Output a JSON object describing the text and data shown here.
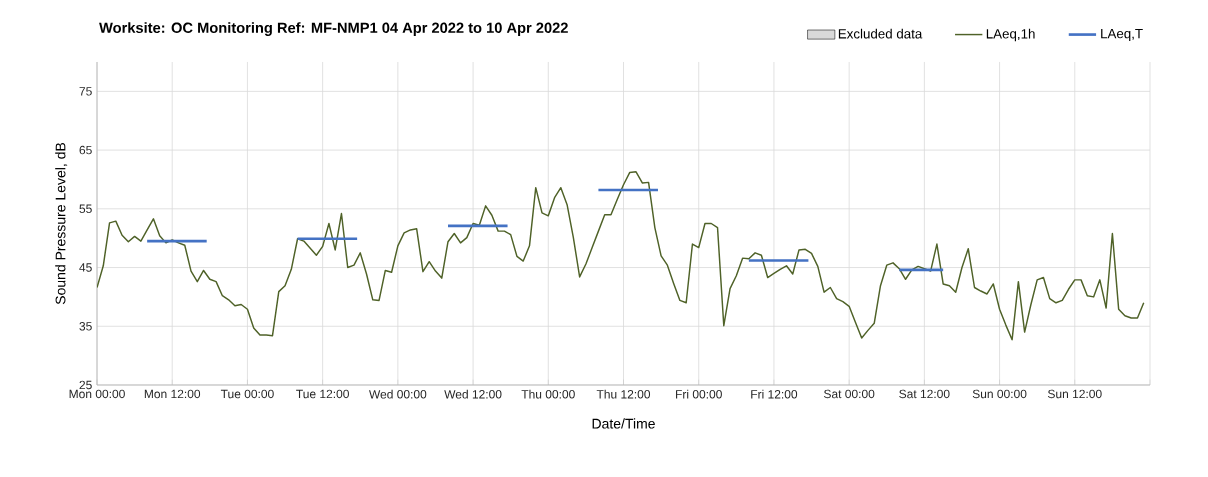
{
  "chart_data": {
    "type": "line",
    "title": "Worksite: OC    Monitoring Ref: MF-NMP1      04 Apr 2022 to 10 Apr 2022",
    "xlabel": "Date/Time",
    "ylabel": "Sound Pressure Level, dB",
    "xlim": [
      "2022-04-04T00:00",
      "2022-04-11T00:00"
    ],
    "ylim": [
      25,
      80
    ],
    "xticks": [
      {
        "value": "2022-04-04T00:00",
        "label": "Mon 00:00"
      },
      {
        "value": "2022-04-04T12:00",
        "label": "Mon 12:00"
      },
      {
        "value": "2022-04-05T00:00",
        "label": "Tue 00:00"
      },
      {
        "value": "2022-04-05T12:00",
        "label": "Tue 12:00"
      },
      {
        "value": "2022-04-06T00:00",
        "label": "Wed 00:00"
      },
      {
        "value": "2022-04-06T12:00",
        "label": "Wed 12:00"
      },
      {
        "value": "2022-04-07T00:00",
        "label": "Thu 00:00"
      },
      {
        "value": "2022-04-07T12:00",
        "label": "Thu 12:00"
      },
      {
        "value": "2022-04-08T00:00",
        "label": "Fri 00:00"
      },
      {
        "value": "2022-04-08T12:00",
        "label": "Fri 12:00"
      },
      {
        "value": "2022-04-09T00:00",
        "label": "Sat 00:00"
      },
      {
        "value": "2022-04-09T12:00",
        "label": "Sat 12:00"
      },
      {
        "value": "2022-04-10T00:00",
        "label": "Sun 00:00"
      },
      {
        "value": "2022-04-10T12:00",
        "label": "Sun 12:00"
      },
      {
        "value": "2022-04-11T00:00",
        "label": null
      }
    ],
    "yticks": [
      25,
      35,
      45,
      55,
      65,
      75
    ],
    "grid": true,
    "legend": "top right",
    "series": [
      {
        "name": "Excluded data",
        "type": "area",
        "color": "#d9d9d9"
      },
      {
        "name": "LAeq,1h",
        "color": "#4f6228",
        "x": [
          "2022-04-04T00:00",
          "2022-04-04T01:00",
          "2022-04-04T02:00",
          "2022-04-04T03:00",
          "2022-04-04T04:00",
          "2022-04-04T05:00",
          "2022-04-04T06:00",
          "2022-04-04T07:00",
          "2022-04-04T08:00",
          "2022-04-04T09:00",
          "2022-04-04T10:00",
          "2022-04-04T11:00",
          "2022-04-04T12:00",
          "2022-04-04T13:00",
          "2022-04-04T14:00",
          "2022-04-04T15:00",
          "2022-04-04T16:00",
          "2022-04-04T17:00",
          "2022-04-04T18:00",
          "2022-04-04T19:00",
          "2022-04-04T20:00",
          "2022-04-04T21:00",
          "2022-04-04T22:00",
          "2022-04-04T23:00",
          "2022-04-05T00:00",
          "2022-04-05T01:00",
          "2022-04-05T02:00",
          "2022-04-05T03:00",
          "2022-04-05T04:00",
          "2022-04-05T05:00",
          "2022-04-05T06:00",
          "2022-04-05T07:00",
          "2022-04-05T08:00",
          "2022-04-05T09:00",
          "2022-04-05T10:00",
          "2022-04-05T11:00",
          "2022-04-05T12:00",
          "2022-04-05T13:00",
          "2022-04-05T14:00",
          "2022-04-05T15:00",
          "2022-04-05T16:00",
          "2022-04-05T17:00",
          "2022-04-05T18:00",
          "2022-04-05T19:00",
          "2022-04-05T20:00",
          "2022-04-05T21:00",
          "2022-04-05T22:00",
          "2022-04-05T23:00",
          "2022-04-06T00:00",
          "2022-04-06T01:00",
          "2022-04-06T02:00",
          "2022-04-06T03:00",
          "2022-04-06T04:00",
          "2022-04-06T05:00",
          "2022-04-06T06:00",
          "2022-04-06T07:00",
          "2022-04-06T08:00",
          "2022-04-06T09:00",
          "2022-04-06T10:00",
          "2022-04-06T11:00",
          "2022-04-06T12:00",
          "2022-04-06T13:00",
          "2022-04-06T14:00",
          "2022-04-06T15:00",
          "2022-04-06T16:00",
          "2022-04-06T17:00",
          "2022-04-06T18:00",
          "2022-04-06T19:00",
          "2022-04-06T20:00",
          "2022-04-06T21:00",
          "2022-04-06T22:00",
          "2022-04-06T23:00",
          "2022-04-07T00:00",
          "2022-04-07T01:00",
          "2022-04-07T02:00",
          "2022-04-07T03:00",
          "2022-04-07T04:00",
          "2022-04-07T05:00",
          "2022-04-07T06:00",
          "2022-04-07T07:00",
          "2022-04-07T08:00",
          "2022-04-07T09:00",
          "2022-04-07T10:00",
          "2022-04-07T11:00",
          "2022-04-07T12:00",
          "2022-04-07T13:00",
          "2022-04-07T14:00",
          "2022-04-07T15:00",
          "2022-04-07T16:00",
          "2022-04-07T17:00",
          "2022-04-07T18:00",
          "2022-04-07T19:00",
          "2022-04-07T20:00",
          "2022-04-07T21:00",
          "2022-04-07T22:00",
          "2022-04-07T23:00",
          "2022-04-08T00:00",
          "2022-04-08T01:00",
          "2022-04-08T02:00",
          "2022-04-08T03:00",
          "2022-04-08T04:00",
          "2022-04-08T05:00",
          "2022-04-08T06:00",
          "2022-04-08T07:00",
          "2022-04-08T08:00",
          "2022-04-08T09:00",
          "2022-04-08T10:00",
          "2022-04-08T11:00",
          "2022-04-08T12:00",
          "2022-04-08T13:00",
          "2022-04-08T14:00",
          "2022-04-08T15:00",
          "2022-04-08T16:00",
          "2022-04-08T17:00",
          "2022-04-08T18:00",
          "2022-04-08T19:00",
          "2022-04-08T20:00",
          "2022-04-08T21:00",
          "2022-04-08T22:00",
          "2022-04-08T23:00",
          "2022-04-09T00:00",
          "2022-04-09T01:00",
          "2022-04-09T02:00",
          "2022-04-09T03:00",
          "2022-04-09T04:00",
          "2022-04-09T05:00",
          "2022-04-09T06:00",
          "2022-04-09T07:00",
          "2022-04-09T08:00",
          "2022-04-09T09:00",
          "2022-04-09T10:00",
          "2022-04-09T11:00",
          "2022-04-09T12:00",
          "2022-04-09T13:00",
          "2022-04-09T14:00",
          "2022-04-09T15:00",
          "2022-04-09T16:00",
          "2022-04-09T17:00",
          "2022-04-09T18:00",
          "2022-04-09T19:00",
          "2022-04-09T20:00",
          "2022-04-09T21:00",
          "2022-04-09T22:00",
          "2022-04-09T23:00",
          "2022-04-10T00:00",
          "2022-04-10T01:00",
          "2022-04-10T02:00",
          "2022-04-10T03:00",
          "2022-04-10T04:00",
          "2022-04-10T05:00",
          "2022-04-10T06:00",
          "2022-04-10T07:00",
          "2022-04-10T08:00",
          "2022-04-10T09:00",
          "2022-04-10T10:00",
          "2022-04-10T11:00",
          "2022-04-10T12:00",
          "2022-04-10T13:00",
          "2022-04-10T14:00",
          "2022-04-10T15:00",
          "2022-04-10T16:00",
          "2022-04-10T17:00",
          "2022-04-10T18:00",
          "2022-04-10T19:00",
          "2022-04-10T20:00",
          "2022-04-10T21:00",
          "2022-04-10T22:00",
          "2022-04-10T23:00"
        ],
        "values": [
          41.6,
          45.3,
          52.6,
          52.9,
          50.5,
          49.4,
          50.3,
          49.5,
          51.4,
          53.3,
          50.4,
          49.2,
          49.7,
          49.2,
          48.8,
          44.4,
          42.6,
          44.5,
          43.0,
          42.6,
          40.2,
          39.5,
          38.5,
          38.7,
          37.9,
          34.7,
          33.5,
          33.5,
          33.4,
          40.9,
          41.9,
          44.7,
          49.9,
          49.5,
          48.3,
          47.1,
          48.6,
          52.5,
          48.0,
          54.2,
          45.0,
          45.4,
          47.5,
          43.9,
          39.5,
          39.4,
          44.5,
          44.2,
          48.7,
          50.9,
          51.4,
          51.6,
          44.3,
          46.0,
          44.4,
          43.2,
          49.4,
          50.8,
          49.2,
          50.1,
          52.5,
          52.2,
          55.5,
          53.9,
          51.2,
          51.2,
          50.6,
          46.9,
          46.1,
          48.7,
          58.6,
          54.3,
          53.8,
          56.9,
          58.6,
          55.7,
          50.1,
          43.4,
          45.6,
          48.4,
          51.2,
          54.0,
          54.0,
          56.6,
          59.1,
          61.2,
          61.3,
          59.4,
          59.5,
          51.8,
          47.0,
          45.4,
          42.3,
          39.4,
          39.0,
          49.0,
          48.4,
          52.5,
          52.5,
          51.8,
          35.1,
          41.4,
          43.6,
          46.6,
          46.5,
          47.5,
          47.1,
          43.3,
          44.0,
          44.7,
          45.3,
          43.9,
          48.0,
          48.1,
          47.4,
          45.2,
          40.8,
          41.6,
          39.7,
          39.2,
          38.4,
          35.7,
          33.0,
          34.3,
          35.5,
          41.9,
          45.4,
          45.8,
          44.8,
          43.0,
          44.6,
          45.2,
          44.8,
          44.4,
          49.0,
          42.2,
          41.9,
          40.8,
          45.0,
          48.2,
          41.6,
          41.0,
          40.5,
          42.2,
          37.9,
          35.2,
          32.7,
          42.6,
          34.0,
          38.7,
          42.9,
          43.3,
          39.7,
          39.0,
          39.4,
          41.3,
          42.9,
          42.9,
          40.2,
          40.0,
          42.9,
          38.1,
          50.8,
          37.9,
          36.8,
          36.4,
          36.4,
          39.0
        ]
      },
      {
        "name": "LAeq,T",
        "color": "#4472c4",
        "x": [
          "2022-04-04T08:00",
          "2022-04-04T17:30",
          "2022-04-04T20:00",
          "2022-04-05T08:00",
          "2022-04-05T17:30",
          "2022-04-05T20:00",
          "2022-04-06T08:00",
          "2022-04-06T17:30",
          "2022-04-06T20:00",
          "2022-04-07T08:00",
          "2022-04-07T17:30",
          "2022-04-07T20:00",
          "2022-04-08T08:00",
          "2022-04-08T17:30",
          "2022-04-08T20:00",
          "2022-04-09T08:00",
          "2022-04-09T15:00"
        ],
        "values": [
          49.5,
          49.5,
          null,
          49.9,
          49.9,
          null,
          52.1,
          52.1,
          null,
          58.2,
          58.2,
          null,
          46.2,
          46.2,
          null,
          44.6,
          44.6
        ]
      }
    ]
  }
}
